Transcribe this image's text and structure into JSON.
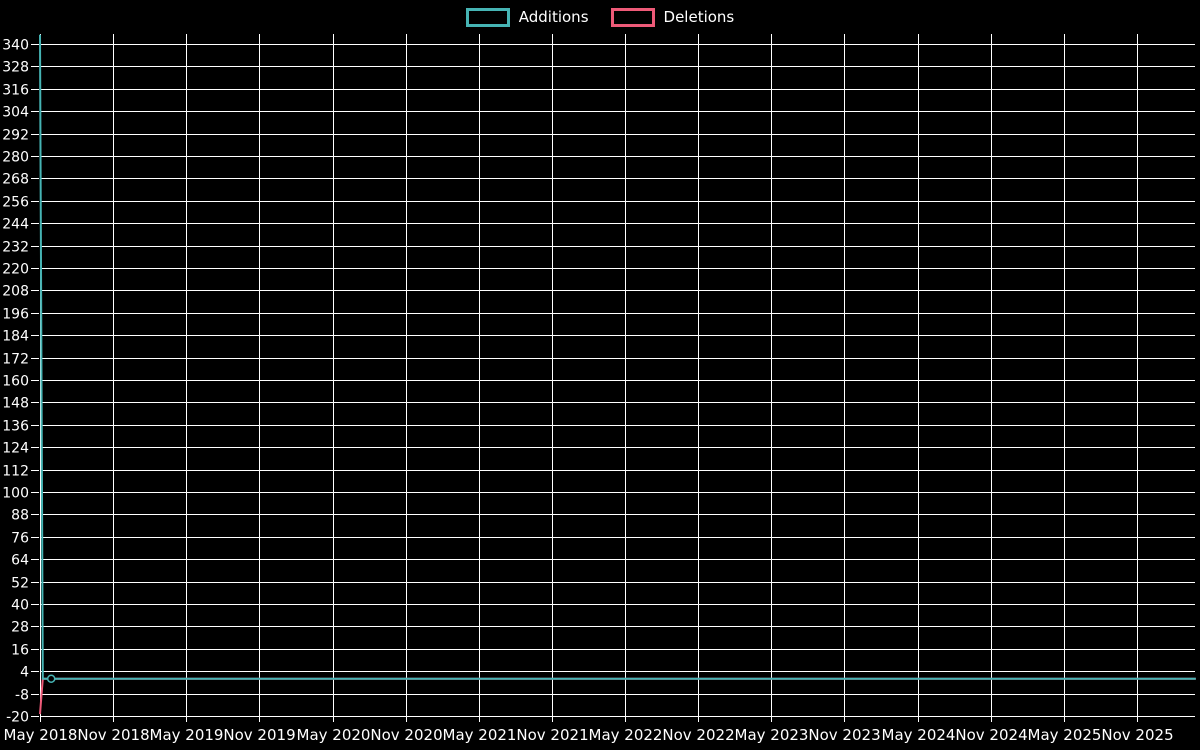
{
  "background_color": "#000000",
  "text_color": "#ffffff",
  "grid_color": "#ffffff",
  "legend": {
    "items": [
      {
        "label": "Additions",
        "color": "#46b4b4"
      },
      {
        "label": "Deletions",
        "color": "#ee5a78"
      }
    ]
  },
  "chart_data": {
    "type": "line",
    "title": "",
    "xlabel": "",
    "ylabel": "",
    "legend_position": "top-center",
    "grid": true,
    "x_tick_labels": [
      "May 2018",
      "Nov 2018",
      "May 2019",
      "Nov 2019",
      "May 2020",
      "Nov 2020",
      "May 2021",
      "Nov 2021",
      "May 2022",
      "Nov 2022",
      "May 2023",
      "Nov 2023",
      "May 2024",
      "Nov 2024",
      "May 2025",
      "Nov 2025"
    ],
    "y_tick_labels": [
      -20,
      -8,
      4,
      16,
      28,
      40,
      52,
      64,
      76,
      88,
      100,
      112,
      124,
      136,
      148,
      160,
      172,
      184,
      196,
      208,
      220,
      232,
      244,
      256,
      268,
      280,
      292,
      304,
      316,
      328,
      340
    ],
    "y_range": [
      -20,
      345.5
    ],
    "x_unit": "week",
    "weeks_per_tick": 26.07,
    "x_weeks_total": 412,
    "series": [
      {
        "name": "Deletions",
        "color": "#ee5a78",
        "points": [
          {
            "week": 0,
            "value": -19
          },
          {
            "week": 1,
            "value": 0
          },
          {
            "week": 412,
            "value": 0
          }
        ]
      },
      {
        "name": "Additions",
        "color": "#46b4b4",
        "points": [
          {
            "week": 0,
            "value": 345
          },
          {
            "week": 1,
            "value": 0
          },
          {
            "week": 412,
            "value": 0
          }
        ],
        "marker_point": {
          "week": 4,
          "value": 0
        }
      }
    ]
  }
}
